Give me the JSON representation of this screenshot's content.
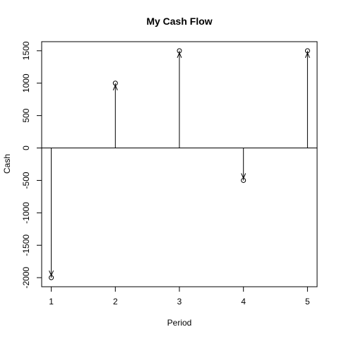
{
  "chart_data": {
    "type": "stem",
    "title": "My Cash Flow",
    "xlabel": "Period",
    "ylabel": "Cash",
    "x": [
      1,
      2,
      3,
      4,
      5
    ],
    "values": [
      -2000,
      1000,
      1500,
      -500,
      1500
    ],
    "xlim": [
      0.85,
      5.15
    ],
    "ylim": [
      -2140,
      1640
    ],
    "x_ticks": [
      1,
      2,
      3,
      4,
      5
    ],
    "y_ticks": [
      -2000,
      -1500,
      -1000,
      -500,
      0,
      500,
      1000,
      1500
    ],
    "baseline": 0,
    "grid": false,
    "marker": "open-circle",
    "stem_style": "arrow",
    "color": "#000000"
  }
}
